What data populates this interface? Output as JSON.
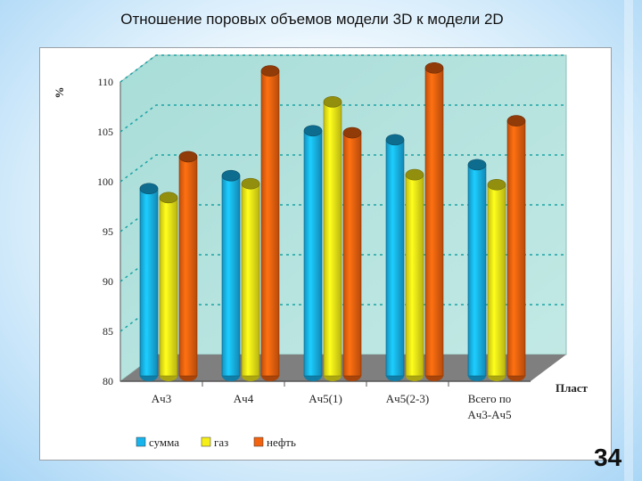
{
  "title": "Отношение поровых объемов модели 3D к модели 2D",
  "page_number": "34",
  "chart_data": {
    "type": "bar",
    "ylabel": "%",
    "xlabel": "Пласт",
    "ylim": [
      80,
      110
    ],
    "yticks": [
      80,
      85,
      90,
      95,
      100,
      105,
      110
    ],
    "grid": true,
    "legend_position": "bottom",
    "categories": [
      [
        "Ач3"
      ],
      [
        "Ач4"
      ],
      [
        "Ач5(1)"
      ],
      [
        "Ач5(2-3)"
      ],
      [
        "Всего по",
        "Ач3-Ач5"
      ]
    ],
    "series": [
      {
        "name": "сумма",
        "color": "#18b4ee",
        "values": [
          97.7,
          99.0,
          103.5,
          102.6,
          100.1
        ]
      },
      {
        "name": "газ",
        "color": "#f5ee18",
        "values": [
          96.8,
          98.2,
          106.4,
          99.1,
          98.1
        ]
      },
      {
        "name": "нефть",
        "color": "#f2620f",
        "values": [
          100.9,
          109.5,
          103.3,
          109.8,
          104.5
        ]
      }
    ]
  }
}
